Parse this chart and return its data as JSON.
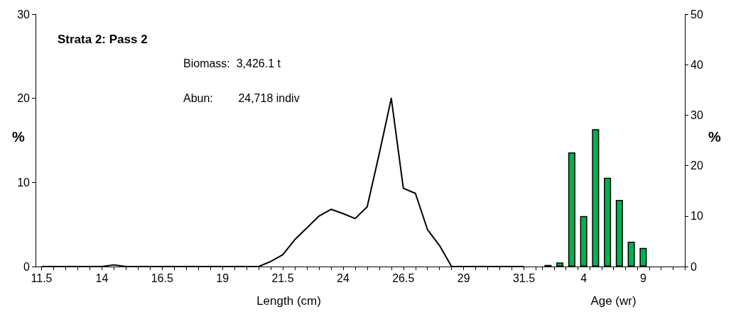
{
  "chart_data": [
    {
      "type": "line",
      "title": "Strata 2: Pass 2",
      "annotations": [
        "Biomass:  3,426.1 t",
        "Abun:        24,718 indiv"
      ],
      "xlabel": "Length (cm)",
      "ylabel": "%",
      "color": "#000000",
      "marker": "none",
      "line_style": "solid",
      "grid": false,
      "x": [
        11.5,
        12,
        12.5,
        13,
        13.5,
        14,
        14.5,
        15,
        15.5,
        16,
        16.5,
        17,
        17.5,
        18,
        18.5,
        19,
        19.5,
        20,
        20.5,
        21,
        21.5,
        22,
        22.5,
        23,
        23.5,
        24,
        24.5,
        25,
        25.5,
        26,
        26.5,
        27,
        27.5,
        28,
        28.5,
        29,
        29.5,
        30,
        30.5,
        31,
        31.5
      ],
      "values": [
        0,
        0,
        0,
        0,
        0,
        0,
        0.2,
        0,
        0,
        0,
        0,
        0,
        0,
        0,
        0,
        0,
        0,
        0,
        0,
        0.6,
        1.4,
        3.2,
        4.6,
        6.0,
        6.8,
        6.3,
        5.7,
        7.1,
        13.4,
        20,
        9.3,
        8.7,
        4.4,
        2.5,
        0,
        0,
        0,
        0,
        0,
        0,
        0
      ],
      "xlim": [
        11.25,
        32.25
      ],
      "xticks": [
        11.5,
        {
          "value": 12,
          "label": null
        },
        {
          "value": 12.5,
          "label": null
        },
        {
          "value": 13,
          "label": null
        },
        {
          "value": 13.5,
          "label": null
        },
        14,
        {
          "value": 14.5,
          "label": null
        },
        {
          "value": 15,
          "label": null
        },
        {
          "value": 15.5,
          "label": null
        },
        {
          "value": 16,
          "label": null
        },
        16.5,
        {
          "value": 17,
          "label": null
        },
        {
          "value": 17.5,
          "label": null
        },
        {
          "value": 18,
          "label": null
        },
        {
          "value": 18.5,
          "label": null
        },
        19,
        {
          "value": 19.5,
          "label": null
        },
        {
          "value": 20,
          "label": null
        },
        {
          "value": 20.5,
          "label": null
        },
        {
          "value": 21,
          "label": null
        },
        21.5,
        {
          "value": 22,
          "label": null
        },
        {
          "value": 22.5,
          "label": null
        },
        {
          "value": 23,
          "label": null
        },
        {
          "value": 23.5,
          "label": null
        },
        24,
        {
          "value": 24.5,
          "label": null
        },
        {
          "value": 25,
          "label": null
        },
        {
          "value": 25.5,
          "label": null
        },
        {
          "value": 26,
          "label": null
        },
        26.5,
        {
          "value": 27,
          "label": null
        },
        {
          "value": 27.5,
          "label": null
        },
        {
          "value": 28,
          "label": null
        },
        {
          "value": 28.5,
          "label": null
        },
        29,
        {
          "value": 29.5,
          "label": null
        },
        {
          "value": 30,
          "label": null
        },
        {
          "value": 30.5,
          "label": null
        },
        {
          "value": 31,
          "label": null
        },
        31.5,
        {
          "value": 32,
          "label": null
        }
      ],
      "ylim": [
        0,
        30
      ],
      "yticks": [
        0,
        10,
        20,
        30
      ]
    },
    {
      "type": "bar",
      "xlabel": "Age (wr)",
      "ylabel": "%",
      "color": "#00b050",
      "grid": false,
      "categories": [
        null,
        null,
        null,
        "4",
        null,
        null,
        null,
        null,
        "9",
        null,
        null,
        null
      ],
      "values": [
        0.3,
        0.8,
        22.6,
        10.0,
        27.2,
        17.6,
        13.2,
        4.9,
        3.7,
        null,
        null,
        null
      ],
      "ylim": [
        0,
        50
      ],
      "yticks": [
        0,
        10,
        20,
        30,
        40,
        50
      ]
    }
  ]
}
